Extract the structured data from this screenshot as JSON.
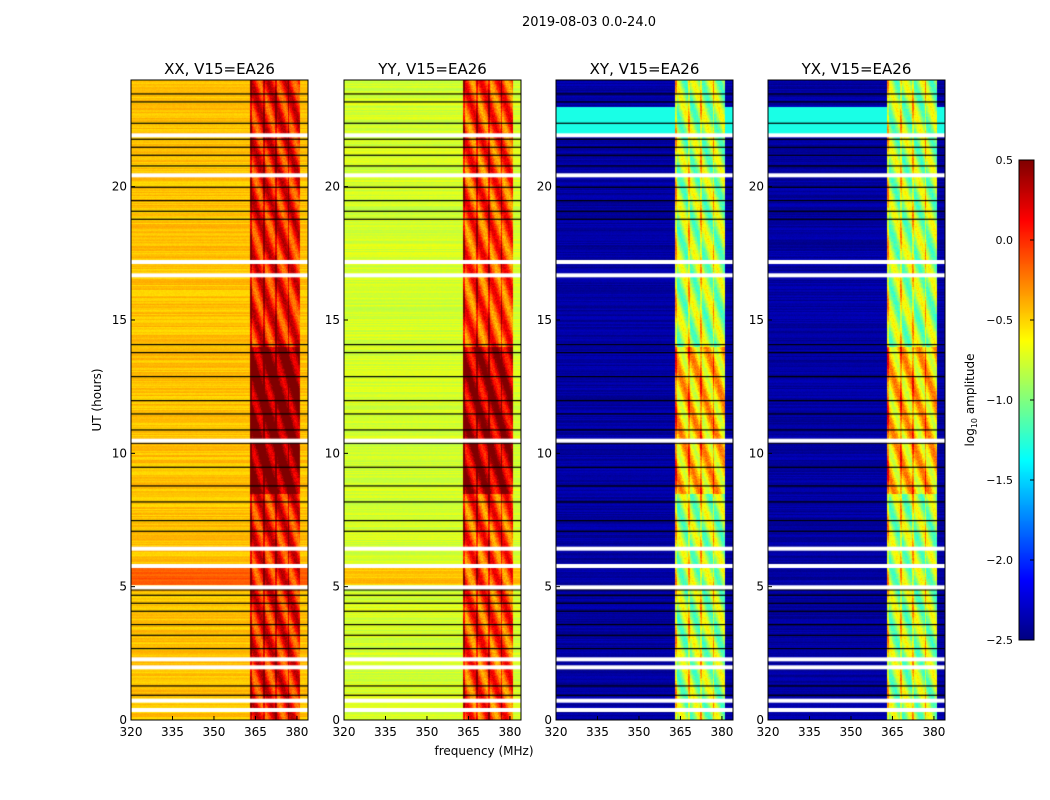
{
  "chart_data": {
    "type": "heatmap",
    "suptitle": "2019-08-03 0.0-24.0",
    "xlabel": "frequency (MHz)",
    "ylabel": "UT (hours)",
    "xlim": [
      320,
      384
    ],
    "ylim": [
      0,
      24
    ],
    "xticks": [
      "320",
      "335",
      "350",
      "365",
      "380"
    ],
    "xtick_values": [
      320,
      335,
      350,
      365,
      380
    ],
    "yticks": [
      "0",
      "5",
      "10",
      "15",
      "20"
    ],
    "ytick_values": [
      0,
      5,
      10,
      15,
      20
    ],
    "panels": [
      {
        "title": "XX, V15=EA26",
        "base_log_amp": -0.45,
        "rfi_log_amp": 0.05
      },
      {
        "title": "YY, V15=EA26",
        "base_log_amp": -0.75,
        "rfi_log_amp": -0.1
      },
      {
        "title": "XY, V15=EA26",
        "base_log_amp": -2.4,
        "rfi_log_amp": -0.9
      },
      {
        "title": "YX, V15=EA26",
        "base_log_amp": -2.4,
        "rfi_log_amp": -0.9
      }
    ],
    "rfi_band_mhz": [
      363,
      381
    ],
    "flagged_hours_white": [
      0.45,
      0.8,
      2.05,
      2.35,
      5.05,
      5.85,
      6.5,
      10.55,
      16.75,
      17.25,
      20.5,
      22.0
    ],
    "flagged_hours_black": [
      0.95,
      1.3,
      2.7,
      3.2,
      3.6,
      4.1,
      4.4,
      4.7,
      4.9,
      7.1,
      7.5,
      8.2,
      8.8,
      9.5,
      10.4,
      10.9,
      11.5,
      12.0,
      12.9,
      13.8,
      14.1,
      18.8,
      19.1,
      19.5,
      20.0,
      20.8,
      21.2,
      21.5,
      21.8,
      22.4,
      23.2,
      23.5
    ],
    "colorbar": {
      "label": "log10 amplitude",
      "ticks": [
        "0.5",
        "0.0",
        "−0.5",
        "−1.0",
        "−1.5",
        "−2.0",
        "−2.5"
      ],
      "tick_values": [
        0.5,
        0,
        -0.5,
        -1,
        -1.5,
        -2,
        -2.5
      ],
      "range": [
        -2.5,
        0.5
      ],
      "colormap": "jet"
    }
  }
}
